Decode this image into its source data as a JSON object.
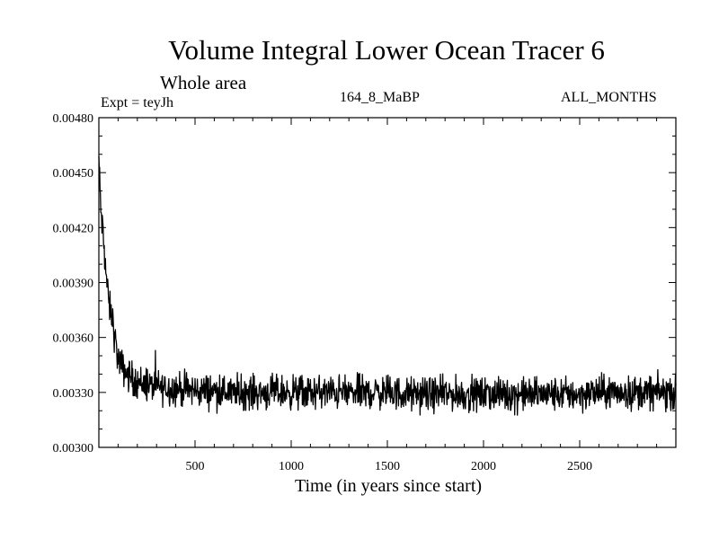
{
  "chart_data": {
    "type": "line",
    "title": "Volume Integral Lower Ocean Tracer 6",
    "subtitle": "Whole area",
    "experiment_label": "Expt = teyJh",
    "run_label": "164_8_MaBP",
    "period_label": "ALL_MONTHS",
    "xlabel": "Time (in years since start)",
    "ylabel": "",
    "xlim": [
      0,
      3000
    ],
    "ylim": [
      0.003,
      0.0048
    ],
    "x_ticks": [
      500,
      1000,
      1500,
      2000,
      2500
    ],
    "y_ticks": [
      0.003,
      0.0033,
      0.0036,
      0.0039,
      0.0042,
      0.0045,
      0.0048
    ],
    "x_tick_labels": [
      "500",
      "1000",
      "1500",
      "2000",
      "2500"
    ],
    "y_tick_labels": [
      "0.00300",
      "0.00330",
      "0.00360",
      "0.00390",
      "0.00420",
      "0.00450",
      "0.00480"
    ],
    "series": [
      {
        "name": "Lower Ocean Tracer 6",
        "color": "#000000",
        "x": [
          0,
          5,
          10,
          20,
          30,
          40,
          50,
          60,
          70,
          80,
          90,
          100,
          120,
          140,
          160,
          180,
          200,
          250,
          300,
          400,
          500,
          600,
          700,
          800,
          900,
          1000,
          1100,
          1200,
          1300,
          1400,
          1500,
          1600,
          1700,
          1800,
          1900,
          2000,
          2100,
          2200,
          2300,
          2400,
          2500,
          2600,
          2700,
          2800,
          2900,
          3000
        ],
        "y": [
          0.00458,
          0.00443,
          0.0043,
          0.00418,
          0.00405,
          0.00392,
          0.0038,
          0.00374,
          0.00371,
          0.00362,
          0.00355,
          0.00348,
          0.00344,
          0.00341,
          0.00339,
          0.00337,
          0.00336,
          0.00334,
          0.00333,
          0.00332,
          0.00331,
          0.00331,
          0.0033,
          0.0033,
          0.0033,
          0.0033,
          0.0033,
          0.0033,
          0.0033,
          0.0033,
          0.0033,
          0.00329,
          0.00329,
          0.00329,
          0.00329,
          0.00329,
          0.00329,
          0.00329,
          0.00329,
          0.00329,
          0.00329,
          0.0033,
          0.0033,
          0.0033,
          0.0033,
          0.0033
        ],
        "noise_amplitude": 0.0001
      }
    ]
  }
}
